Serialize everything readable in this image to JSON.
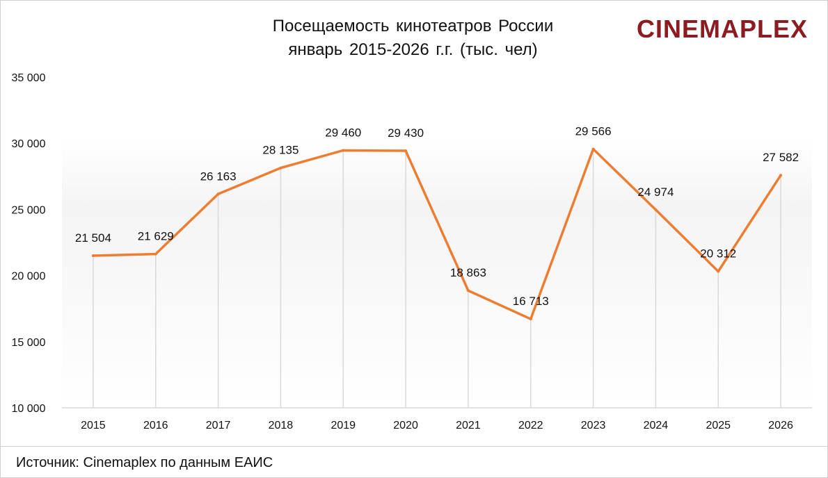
{
  "chart_data": {
    "type": "line",
    "title": "Посещаемость кинотеатров России",
    "subtitle": "январь 2015-2026 г.г. (тыс. чел)",
    "categories": [
      "2015",
      "2016",
      "2017",
      "2018",
      "2019",
      "2020",
      "2021",
      "2022",
      "2023",
      "2024",
      "2025",
      "2026"
    ],
    "values": [
      21504,
      21629,
      26163,
      28135,
      29460,
      29430,
      18863,
      16713,
      29566,
      24974,
      20312,
      27582
    ],
    "value_labels": [
      "21 504",
      "21 629",
      "26 163",
      "28 135",
      "29 460",
      "29 430",
      "18 863",
      "16 713",
      "29 566",
      "24 974",
      "20 312",
      "27 582"
    ],
    "ylim": [
      10000,
      35000
    ],
    "yticks": [
      10000,
      15000,
      20000,
      25000,
      30000,
      35000
    ],
    "ytick_labels": [
      "10 000",
      "15 000",
      "20 000",
      "25 000",
      "30 000",
      "35 000"
    ],
    "xlabel": "",
    "ylabel": "",
    "grid": "vertical",
    "line_color": "#ed7d31",
    "grid_color": "#d9d9d9"
  },
  "header": {
    "title_line1": "Посещаемость кинотеатров России",
    "title_line2": "январь 2015-2026 г.г. (тыс. чел)",
    "logo_strong": "CINEMA",
    "logo_light": "PLEX",
    "logo_color": "#8c1c22"
  },
  "footer": {
    "source": "Источник: Cinemaplex по данным ЕАИС"
  }
}
